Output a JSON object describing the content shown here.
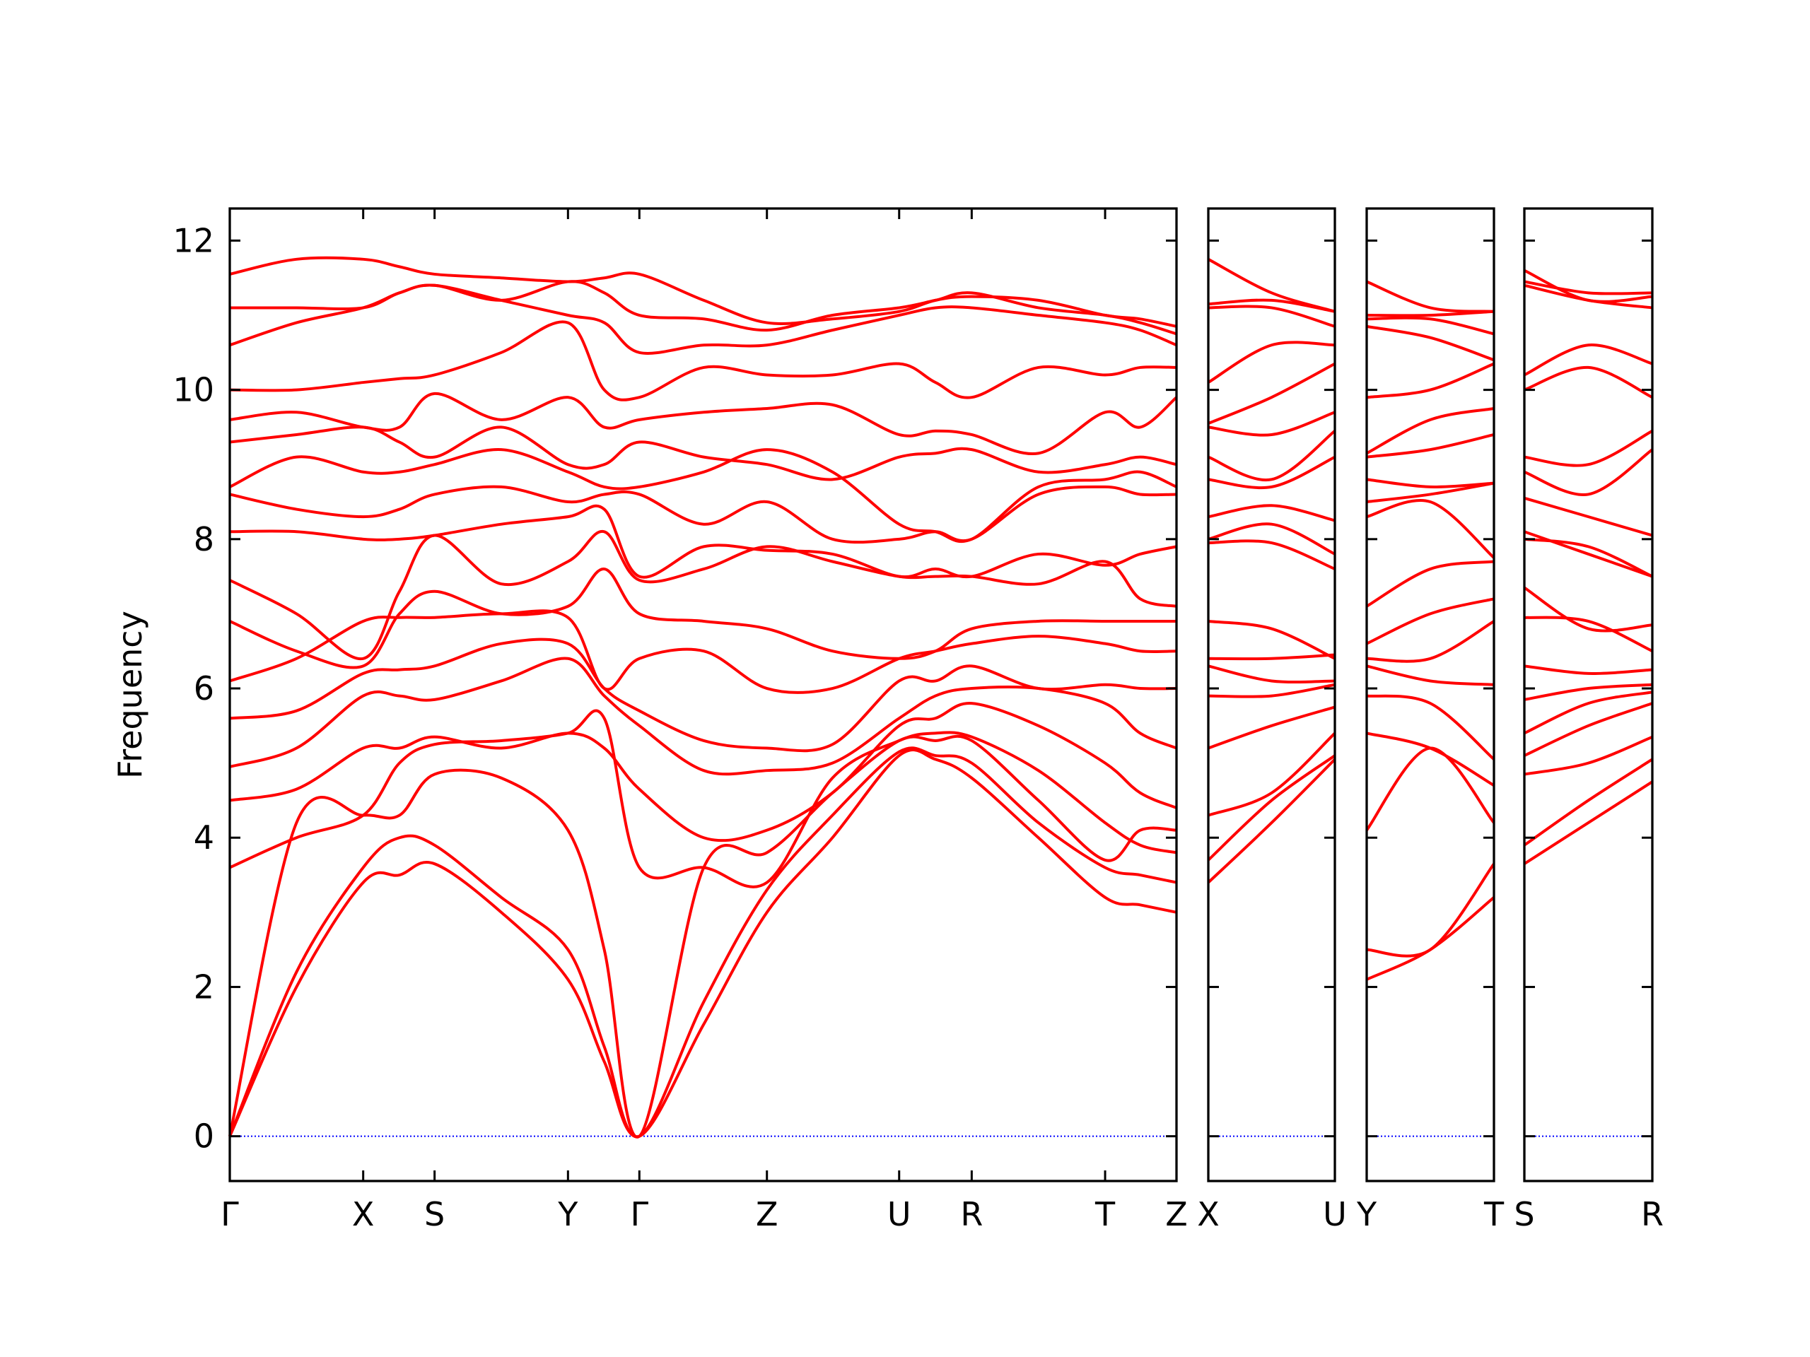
{
  "chart_data": [
    {
      "type": "line",
      "ylabel": "Frequency",
      "color": "#ff0000",
      "zero_line": {
        "color": "#0000ff",
        "style": "dotted"
      },
      "xlim": [
        0,
        8.09
      ],
      "ylim": [
        -0.6,
        12.43
      ],
      "yticks": [
        0,
        2,
        4,
        6,
        8,
        10,
        12
      ],
      "xticks": [
        {
          "value": 0,
          "label": "Γ"
        },
        {
          "value": 1.14,
          "label": "X"
        },
        {
          "value": 1.75,
          "label": "S"
        },
        {
          "value": 2.89,
          "label": "Y"
        },
        {
          "value": 3.5,
          "label": "Γ"
        },
        {
          "value": 4.59,
          "label": "Z"
        },
        {
          "value": 5.72,
          "label": "U"
        },
        {
          "value": 6.34,
          "label": "R"
        },
        {
          "value": 7.48,
          "label": "T"
        },
        {
          "value": 8.09,
          "label": "Z"
        }
      ],
      "x": [
        0,
        0.57,
        1.14,
        1.45,
        1.75,
        2.32,
        2.89,
        3.2,
        3.5,
        4.05,
        4.59,
        5.15,
        5.72,
        6.03,
        6.34,
        6.91,
        7.48,
        7.78,
        8.09
      ],
      "series": [
        {
          "values": [
            0,
            2.0,
            3.4,
            3.5,
            3.65,
            3.0,
            2.1,
            1.0,
            0,
            1.5,
            3.0,
            4.0,
            5.1,
            5.05,
            4.8,
            4.0,
            3.2,
            3.1,
            3.0
          ]
        },
        {
          "values": [
            0,
            2.2,
            3.6,
            4.0,
            3.9,
            3.2,
            2.5,
            1.2,
            0,
            1.8,
            3.3,
            4.3,
            5.15,
            5.1,
            5.0,
            4.2,
            3.6,
            3.5,
            3.4
          ]
        },
        {
          "values": [
            0,
            4.2,
            4.3,
            4.3,
            4.85,
            4.8,
            4.1,
            2.5,
            0,
            3.6,
            3.8,
            4.6,
            5.3,
            5.3,
            5.3,
            4.5,
            3.7,
            4.1,
            4.1
          ]
        },
        {
          "values": [
            3.6,
            4.0,
            4.3,
            5.0,
            5.25,
            5.3,
            5.4,
            5.6,
            3.6,
            3.6,
            3.4,
            4.8,
            5.3,
            5.4,
            5.35,
            4.9,
            4.2,
            3.9,
            3.8
          ]
        },
        {
          "values": [
            4.5,
            4.65,
            5.2,
            5.2,
            5.35,
            5.2,
            5.4,
            5.2,
            4.65,
            4.0,
            4.1,
            4.6,
            5.5,
            5.6,
            5.8,
            5.5,
            5.0,
            4.6,
            4.4
          ]
        },
        {
          "values": [
            4.95,
            5.2,
            5.9,
            5.9,
            5.85,
            6.1,
            6.4,
            5.9,
            5.5,
            4.9,
            4.9,
            5.0,
            5.6,
            5.9,
            6.0,
            6.0,
            5.8,
            5.4,
            5.2
          ]
        },
        {
          "values": [
            5.6,
            5.7,
            6.2,
            6.25,
            6.3,
            6.6,
            6.6,
            6.0,
            5.7,
            5.3,
            5.2,
            5.25,
            6.1,
            6.1,
            6.3,
            6.0,
            6.05,
            6.0,
            6.0
          ]
        },
        {
          "values": [
            6.1,
            6.4,
            6.9,
            6.95,
            6.95,
            7.0,
            6.95,
            6.0,
            6.4,
            6.5,
            6.0,
            6.0,
            6.4,
            6.5,
            6.6,
            6.7,
            6.6,
            6.5,
            6.5
          ]
        },
        {
          "values": [
            6.9,
            6.5,
            6.3,
            7.0,
            7.3,
            7.0,
            7.1,
            7.6,
            7.0,
            6.9,
            6.8,
            6.5,
            6.4,
            6.5,
            6.8,
            6.9,
            6.9,
            6.9,
            6.9
          ]
        },
        {
          "values": [
            7.45,
            7.0,
            6.4,
            7.3,
            8.05,
            7.4,
            7.7,
            8.1,
            7.45,
            7.6,
            7.9,
            7.7,
            7.5,
            7.5,
            7.5,
            7.4,
            7.7,
            7.2,
            7.1
          ]
        },
        {
          "values": [
            8.1,
            8.1,
            8.0,
            8.0,
            8.05,
            8.2,
            8.3,
            8.4,
            7.5,
            7.9,
            7.85,
            7.8,
            7.5,
            7.6,
            7.5,
            7.8,
            7.65,
            7.8,
            7.9
          ]
        },
        {
          "values": [
            8.6,
            8.4,
            8.3,
            8.4,
            8.6,
            8.7,
            8.5,
            8.6,
            8.6,
            8.2,
            8.5,
            8.0,
            8.0,
            8.1,
            8.0,
            8.6,
            8.7,
            8.6,
            8.6
          ]
        },
        {
          "values": [
            8.7,
            9.1,
            8.9,
            8.9,
            9.0,
            9.2,
            8.9,
            8.7,
            8.7,
            8.9,
            9.2,
            8.9,
            8.2,
            8.1,
            8.0,
            8.7,
            8.8,
            8.9,
            8.7
          ]
        },
        {
          "values": [
            9.3,
            9.4,
            9.5,
            9.3,
            9.1,
            9.5,
            9.0,
            9.0,
            9.3,
            9.1,
            9.0,
            8.8,
            9.1,
            9.15,
            9.2,
            8.9,
            9.0,
            9.1,
            9.0
          ]
        },
        {
          "values": [
            9.6,
            9.7,
            9.5,
            9.5,
            9.95,
            9.6,
            9.9,
            9.5,
            9.6,
            9.7,
            9.75,
            9.8,
            9.4,
            9.45,
            9.4,
            9.15,
            9.7,
            9.5,
            9.9
          ]
        },
        {
          "values": [
            10.0,
            10.0,
            10.1,
            10.15,
            10.2,
            10.5,
            10.9,
            10.0,
            9.9,
            10.3,
            10.2,
            10.2,
            10.35,
            10.1,
            9.9,
            10.3,
            10.2,
            10.3,
            10.3
          ]
        },
        {
          "values": [
            10.6,
            10.9,
            11.1,
            11.3,
            11.4,
            11.2,
            11.0,
            10.9,
            10.5,
            10.6,
            10.6,
            10.8,
            11.0,
            11.1,
            11.1,
            11.0,
            10.9,
            10.8,
            10.6
          ]
        },
        {
          "values": [
            11.1,
            11.1,
            11.1,
            11.3,
            11.4,
            11.2,
            11.45,
            11.3,
            11.0,
            10.95,
            10.8,
            11.0,
            11.1,
            11.2,
            11.3,
            11.1,
            11.0,
            10.9,
            10.75
          ]
        },
        {
          "values": [
            11.55,
            11.75,
            11.75,
            11.65,
            11.55,
            11.5,
            11.45,
            11.5,
            11.55,
            11.2,
            10.9,
            10.95,
            11.05,
            11.2,
            11.25,
            11.2,
            11.0,
            10.95,
            10.85
          ]
        }
      ]
    },
    {
      "type": "line",
      "xlim": [
        0,
        1.08
      ],
      "xticks": [
        {
          "value": 0,
          "label": "X"
        },
        {
          "value": 1.08,
          "label": "U"
        }
      ],
      "x": [
        0,
        0.54,
        1.08
      ],
      "series": [
        {
          "values": [
            3.4,
            4.2,
            5.05
          ]
        },
        {
          "values": [
            3.7,
            4.5,
            5.1
          ]
        },
        {
          "values": [
            4.3,
            4.6,
            5.4
          ]
        },
        {
          "values": [
            5.2,
            5.5,
            5.75
          ]
        },
        {
          "values": [
            5.9,
            5.9,
            6.05
          ]
        },
        {
          "values": [
            6.3,
            6.1,
            6.1
          ]
        },
        {
          "values": [
            6.4,
            6.4,
            6.45
          ]
        },
        {
          "values": [
            6.9,
            6.8,
            6.4
          ]
        },
        {
          "values": [
            7.95,
            7.95,
            7.6
          ]
        },
        {
          "values": [
            8.0,
            8.2,
            7.8
          ]
        },
        {
          "values": [
            8.3,
            8.45,
            8.25
          ]
        },
        {
          "values": [
            8.8,
            8.7,
            9.1
          ]
        },
        {
          "values": [
            9.1,
            8.8,
            9.45
          ]
        },
        {
          "values": [
            9.5,
            9.4,
            9.7
          ]
        },
        {
          "values": [
            9.55,
            9.9,
            10.35
          ]
        },
        {
          "values": [
            10.1,
            10.6,
            10.6
          ]
        },
        {
          "values": [
            11.1,
            11.1,
            10.85
          ]
        },
        {
          "values": [
            11.15,
            11.2,
            11.05
          ]
        },
        {
          "values": [
            11.75,
            11.3,
            11.05
          ]
        }
      ]
    },
    {
      "type": "line",
      "xlim": [
        0,
        1.09
      ],
      "xticks": [
        {
          "value": 0,
          "label": "Y"
        },
        {
          "value": 1.09,
          "label": "T"
        }
      ],
      "x": [
        0,
        0.545,
        1.09
      ],
      "series": [
        {
          "values": [
            2.1,
            2.5,
            3.2
          ]
        },
        {
          "values": [
            2.5,
            2.5,
            3.65
          ]
        },
        {
          "values": [
            4.1,
            5.2,
            4.2
          ]
        },
        {
          "values": [
            5.4,
            5.2,
            4.7
          ]
        },
        {
          "values": [
            5.9,
            5.8,
            5.05
          ]
        },
        {
          "values": [
            6.3,
            6.1,
            6.05
          ]
        },
        {
          "values": [
            6.4,
            6.4,
            6.9
          ]
        },
        {
          "values": [
            6.6,
            7.0,
            7.2
          ]
        },
        {
          "values": [
            7.1,
            7.6,
            7.7
          ]
        },
        {
          "values": [
            8.3,
            8.5,
            7.75
          ]
        },
        {
          "values": [
            8.5,
            8.6,
            8.75
          ]
        },
        {
          "values": [
            8.8,
            8.7,
            8.75
          ]
        },
        {
          "values": [
            9.1,
            9.2,
            9.4
          ]
        },
        {
          "values": [
            9.15,
            9.6,
            9.75
          ]
        },
        {
          "values": [
            9.9,
            10.0,
            10.35
          ]
        },
        {
          "values": [
            10.85,
            10.7,
            10.4
          ]
        },
        {
          "values": [
            10.95,
            10.95,
            10.75
          ]
        },
        {
          "values": [
            11.0,
            11.0,
            11.05
          ]
        },
        {
          "values": [
            11.45,
            11.1,
            11.05
          ]
        }
      ]
    },
    {
      "type": "line",
      "xlim": [
        0,
        1.09
      ],
      "xticks": [
        {
          "value": 0,
          "label": "S"
        },
        {
          "value": 1.09,
          "label": "R"
        }
      ],
      "x": [
        0,
        0.545,
        1.09
      ],
      "series": [
        {
          "values": [
            3.65,
            4.2,
            4.75
          ]
        },
        {
          "values": [
            3.9,
            4.5,
            5.05
          ]
        },
        {
          "values": [
            4.85,
            5.0,
            5.35
          ]
        },
        {
          "values": [
            5.1,
            5.5,
            5.8
          ]
        },
        {
          "values": [
            5.4,
            5.8,
            5.95
          ]
        },
        {
          "values": [
            5.85,
            6.0,
            6.05
          ]
        },
        {
          "values": [
            6.3,
            6.2,
            6.25
          ]
        },
        {
          "values": [
            6.95,
            6.9,
            6.5
          ]
        },
        {
          "values": [
            7.35,
            6.8,
            6.85
          ]
        },
        {
          "values": [
            8.0,
            7.9,
            7.5
          ]
        },
        {
          "values": [
            8.1,
            7.8,
            7.5
          ]
        },
        {
          "values": [
            8.55,
            8.3,
            8.05
          ]
        },
        {
          "values": [
            8.9,
            8.6,
            9.2
          ]
        },
        {
          "values": [
            9.1,
            9.0,
            9.45
          ]
        },
        {
          "values": [
            10.0,
            10.3,
            9.9
          ]
        },
        {
          "values": [
            10.2,
            10.6,
            10.35
          ]
        },
        {
          "values": [
            11.4,
            11.2,
            11.1
          ]
        },
        {
          "values": [
            11.45,
            11.3,
            11.3
          ]
        },
        {
          "values": [
            11.6,
            11.2,
            11.25
          ]
        }
      ]
    }
  ]
}
